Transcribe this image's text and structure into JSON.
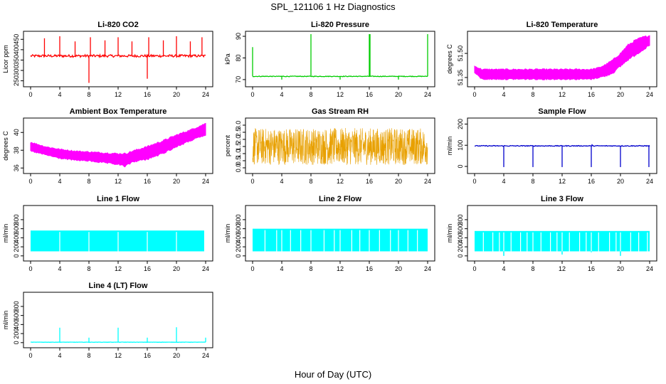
{
  "figure": {
    "title": "SPL_121106  1 Hz Diagnostics",
    "xlabel": "Hour of Day (UTC)"
  },
  "chart_data": [
    {
      "type": "line",
      "title": "Li-820 CO2",
      "xlabel": "",
      "ylabel": "Licor ppm",
      "xlim": [
        0,
        24
      ],
      "ylim": [
        235,
        475
      ],
      "xticks": [
        "0",
        "4",
        "8",
        "12",
        "16",
        "20",
        "24"
      ],
      "yticks": [
        "250",
        "300",
        "350",
        "400",
        "450"
      ],
      "series": [
        {
          "color": "#ff0000",
          "style": "noisy",
          "base": 370,
          "noise": 6,
          "spikes": [
            [
              1.9,
              455
            ],
            [
              4.0,
              465
            ],
            [
              6.1,
              440
            ],
            [
              8.0,
              240
            ],
            [
              8.2,
              460
            ],
            [
              10.2,
              445
            ],
            [
              12.0,
              460
            ],
            [
              13.9,
              440
            ],
            [
              16.0,
              260
            ],
            [
              16.2,
              460
            ],
            [
              18.2,
              445
            ],
            [
              20.0,
              465
            ],
            [
              21.9,
              440
            ],
            [
              23.5,
              460
            ]
          ]
        }
      ]
    },
    {
      "type": "line",
      "title": "Li-820 Pressure",
      "xlabel": "",
      "ylabel": "kPa",
      "xlim": [
        0,
        24
      ],
      "ylim": [
        68,
        91
      ],
      "xticks": [
        "0",
        "4",
        "8",
        "12",
        "16",
        "20",
        "24"
      ],
      "yticks": [
        "70",
        "80",
        "90"
      ],
      "series": [
        {
          "color": "#00cc00",
          "style": "noisy",
          "base": 71.5,
          "noise": 0.15,
          "spikes": [
            [
              0.0,
              85
            ],
            [
              4.0,
              70
            ],
            [
              8.0,
              91
            ],
            [
              12.0,
              70
            ],
            [
              16.0,
              91
            ],
            [
              16.1,
              91
            ],
            [
              20.0,
              70
            ],
            [
              24.0,
              91
            ]
          ]
        }
      ]
    },
    {
      "type": "line",
      "title": "Li-820 Temperature",
      "xlabel": "",
      "ylabel": "degrees C",
      "xlim": [
        0,
        24
      ],
      "ylim": [
        51.31,
        51.62
      ],
      "xticks": [
        "0",
        "4",
        "8",
        "12",
        "16",
        "20",
        "24"
      ],
      "yticks": [
        "51.35",
        "51.50"
      ],
      "series": [
        {
          "color": "#ff00ff",
          "style": "band",
          "x": [
            0,
            1,
            2,
            4,
            8,
            12,
            16,
            17,
            18,
            19,
            20,
            21,
            22,
            23,
            24
          ],
          "lo": [
            51.38,
            51.34,
            51.34,
            51.34,
            51.34,
            51.34,
            51.34,
            51.35,
            51.36,
            51.38,
            51.42,
            51.46,
            51.49,
            51.52,
            51.55
          ],
          "hi": [
            51.42,
            51.4,
            51.4,
            51.4,
            51.4,
            51.4,
            51.4,
            51.41,
            51.43,
            51.46,
            51.5,
            51.55,
            51.58,
            51.6,
            51.61
          ]
        }
      ]
    },
    {
      "type": "line",
      "title": "Ambient Box Temperature",
      "xlabel": "",
      "ylabel": "degrees C",
      "xlim": [
        0,
        24
      ],
      "ylim": [
        35.7,
        41.3
      ],
      "xticks": [
        "0",
        "4",
        "8",
        "12",
        "16",
        "20",
        "24"
      ],
      "yticks": [
        "36",
        "38",
        "40"
      ],
      "series": [
        {
          "color": "#ff00ff",
          "style": "band",
          "x": [
            0,
            2,
            4,
            6,
            8,
            10,
            12,
            13,
            14,
            16,
            18,
            20,
            22,
            24
          ],
          "lo": [
            37.9,
            37.5,
            37.1,
            36.9,
            36.8,
            36.6,
            36.4,
            36.2,
            36.7,
            37.0,
            37.6,
            38.4,
            39.1,
            39.7
          ],
          "hi": [
            38.9,
            38.4,
            38.1,
            37.9,
            37.8,
            37.7,
            37.6,
            37.6,
            37.9,
            38.4,
            39.0,
            39.7,
            40.3,
            41.0
          ]
        }
      ]
    },
    {
      "type": "line",
      "title": "Gas Stream RH",
      "xlabel": "",
      "ylabel": "percent",
      "xlim": [
        0,
        24
      ],
      "ylim": [
        -0.2,
        3.3
      ],
      "xticks": [
        "0",
        "4",
        "8",
        "12",
        "16",
        "20",
        "24"
      ],
      "yticks": [
        "0.0",
        "0.5",
        "1.0",
        "1.5",
        "2.0",
        "2.5",
        "3.0"
      ],
      "series": [
        {
          "color": "#e8a000",
          "style": "dense",
          "lo": 0.2,
          "hi": 2.8,
          "center": 1.6
        }
      ]
    },
    {
      "type": "line",
      "title": "Sample Flow",
      "xlabel": "",
      "ylabel": "ml/min",
      "xlim": [
        0,
        24
      ],
      "ylim": [
        -20,
        215
      ],
      "xticks": [
        "0",
        "4",
        "8",
        "12",
        "16",
        "20",
        "24"
      ],
      "yticks": [
        "0",
        "100",
        "200"
      ],
      "series": [
        {
          "color": "#0000cc",
          "style": "noisy",
          "base": 97,
          "noise": 2,
          "spikes": [
            [
              4.0,
              -3
            ],
            [
              8.0,
              -3
            ],
            [
              12.0,
              -3
            ],
            [
              16.0,
              -3
            ],
            [
              16.1,
              105
            ],
            [
              20.0,
              -3
            ],
            [
              23.9,
              -3
            ]
          ]
        }
      ]
    },
    {
      "type": "line",
      "title": "Line 1 Flow",
      "xlabel": "",
      "ylabel": "ml/min",
      "xlim": [
        0,
        24
      ],
      "ylim": [
        -50,
        1050
      ],
      "xticks": [
        "0",
        "4",
        "8",
        "12",
        "16",
        "20",
        "24"
      ],
      "yticks": [
        "0",
        "200",
        "400",
        "600",
        "800"
      ],
      "series": [
        {
          "color": "#00ffff",
          "style": "block",
          "lo": 100,
          "hi": 560,
          "xend": 23.8,
          "gaps": [
            4.0,
            8.0,
            12.0,
            16.0,
            20.0
          ],
          "dips": []
        }
      ]
    },
    {
      "type": "line",
      "title": "Line 2 Flow",
      "xlabel": "",
      "ylabel": "ml/min",
      "xlim": [
        0,
        24
      ],
      "ylim": [
        -50,
        1050
      ],
      "xticks": [
        "0",
        "4",
        "8",
        "12",
        "16",
        "20",
        "24"
      ],
      "yticks": [
        "0",
        "200",
        "400",
        "600",
        "800"
      ],
      "series": [
        {
          "color": "#00ffff",
          "style": "block",
          "lo": 100,
          "hi": 600,
          "xend": 24,
          "gaps": [
            1.7,
            3.3,
            4.0,
            5.2,
            6.6,
            8.0,
            9.8,
            11.2,
            12.0,
            13.6,
            14.7,
            16.0,
            17.4,
            18.9,
            20.0,
            21.3,
            22.6
          ],
          "dips": []
        }
      ]
    },
    {
      "type": "line",
      "title": "Line 3 Flow",
      "xlabel": "",
      "ylabel": "ml/min",
      "xlim": [
        0,
        24
      ],
      "ylim": [
        -50,
        1050
      ],
      "xticks": [
        "0",
        "4",
        "8",
        "12",
        "16",
        "20",
        "24"
      ],
      "yticks": [
        "0",
        "200",
        "400",
        "600",
        "800"
      ],
      "series": [
        {
          "color": "#00ffff",
          "style": "block",
          "lo": 100,
          "hi": 550,
          "xend": 24,
          "gaps": [
            1.2,
            2.5,
            3.4,
            4.0,
            5.0,
            6.3,
            7.2,
            8.0,
            9.1,
            10.4,
            11.3,
            12.0,
            13.0,
            14.4,
            15.3,
            16.0,
            17.0,
            18.5,
            19.4,
            20.0,
            21.4,
            22.5,
            23.7
          ],
          "dips": [
            [
              4.0,
              0
            ],
            [
              12.0,
              30
            ],
            [
              16.0,
              80
            ],
            [
              20.0,
              0
            ]
          ]
        }
      ]
    },
    {
      "type": "line",
      "title": "Line 4 (LT) Flow",
      "xlabel": "",
      "ylabel": "ml/min",
      "xlim": [
        0,
        24
      ],
      "ylim": [
        -50,
        1050
      ],
      "xticks": [
        "0",
        "4",
        "8",
        "12",
        "16",
        "20",
        "24"
      ],
      "yticks": [
        "0",
        "200",
        "400",
        "600",
        "800"
      ],
      "series": [
        {
          "color": "#00ffff",
          "style": "noisy",
          "base": 10,
          "noise": 3,
          "spikes": [
            [
              4.0,
              330
            ],
            [
              8.0,
              110
            ],
            [
              12.0,
              330
            ],
            [
              16.0,
              110
            ],
            [
              20.0,
              340
            ],
            [
              24.0,
              110
            ]
          ]
        }
      ]
    }
  ]
}
